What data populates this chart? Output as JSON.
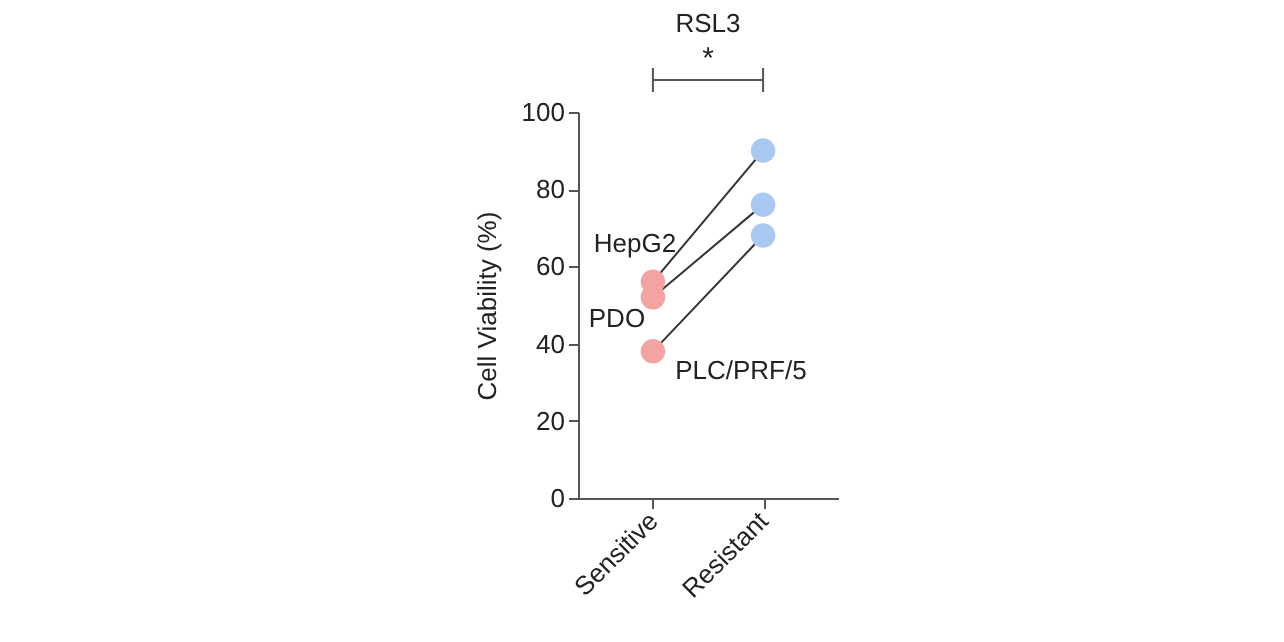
{
  "chart_data": {
    "type": "line",
    "ylabel": "Cell Viability (%)",
    "categories": [
      "Sensitive",
      "Resistant"
    ],
    "series": [
      {
        "name": "HepG2",
        "color": "#333333",
        "colors": [
          "#f4a3a3",
          "#a9c9f2"
        ],
        "values": [
          56,
          90
        ]
      },
      {
        "name": "PDO",
        "color": "#333333",
        "colors": [
          "#f4a3a3",
          "#a9c9f2"
        ],
        "values": [
          52,
          76
        ]
      },
      {
        "name": "PLC/PRF/5",
        "color": "#333333",
        "colors": [
          "#f4a3a3",
          "#a9c9f2"
        ],
        "values": [
          38,
          68
        ]
      }
    ],
    "ylim": [
      0,
      100
    ],
    "yticks": [
      0,
      20,
      40,
      60,
      80,
      100
    ],
    "grid": false,
    "marker": "circle",
    "line_style": "solid",
    "annotations": [
      "RSL3",
      "*"
    ]
  }
}
